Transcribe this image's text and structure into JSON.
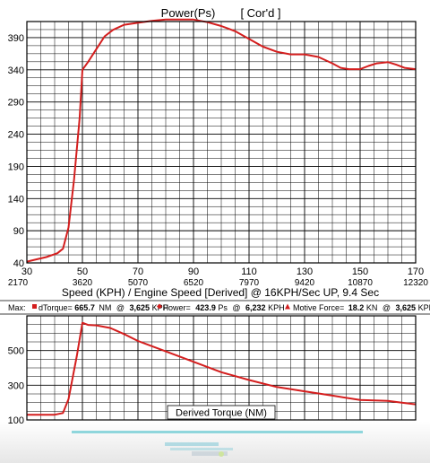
{
  "colors": {
    "curve": "#d41e1e",
    "grid": "#000000",
    "frame": "#000000",
    "background": "#ffffff",
    "footer_bar": "#8fd6dc"
  },
  "stats_bar": {
    "label": "Max:",
    "items": [
      {
        "marker": "square",
        "name": "dTorque=",
        "value": "665.7",
        "unit": "NM",
        "at": "@",
        "rpm": "3,625",
        "rpm_unit": "KPH"
      },
      {
        "marker": "diamond",
        "name": "Power=",
        "value": "423.9",
        "unit": "Ps",
        "at": "@",
        "rpm": "6,232",
        "rpm_unit": "KPH"
      },
      {
        "marker": "triangle",
        "name": "Motive Force=",
        "value": "18.2",
        "unit": "KN",
        "at": "@",
        "rpm": "3,625",
        "rpm_unit": "KPH"
      }
    ]
  },
  "chart_data": [
    {
      "type": "line",
      "title": "Power(Ps)",
      "subtitle": "[ Cor'd ]",
      "xlabel": "Speed (KPH) / Engine Speed [Derived] @ 16KPH/Sec UP, 9.4 Sec",
      "xlim": [
        30,
        170
      ],
      "ylim": [
        40,
        415
      ],
      "grid": true,
      "x_ticks": [
        30,
        50,
        70,
        90,
        110,
        130,
        150,
        170
      ],
      "x_tick_labels": [
        "30",
        "50",
        "70",
        "90",
        "110",
        "130",
        "150",
        "170"
      ],
      "x2_tick_labels": [
        "2170",
        "3620",
        "5070",
        "6520",
        "7970",
        "9420",
        "10870",
        "12320"
      ],
      "y_ticks": [
        40,
        90,
        140,
        190,
        240,
        290,
        340,
        390
      ],
      "y_tick_labels": [
        "40",
        "90",
        "140",
        "190",
        "240",
        "290",
        "340",
        "390"
      ],
      "series": [
        {
          "x": [
            30,
            33,
            37,
            41,
            43,
            45,
            47,
            49,
            50,
            52,
            55,
            58,
            61,
            65,
            70,
            75,
            80,
            85,
            90,
            95,
            100,
            105,
            110,
            115,
            120,
            125,
            130,
            135,
            140,
            143,
            146,
            150,
            153,
            156,
            160,
            163,
            166,
            170
          ],
          "y": [
            42,
            45,
            49,
            55,
            62,
            95,
            170,
            265,
            340,
            352,
            372,
            392,
            402,
            410,
            413,
            416,
            418,
            418,
            418,
            414,
            408,
            400,
            388,
            376,
            368,
            364,
            364,
            360,
            350,
            343,
            341,
            341,
            346,
            350,
            352,
            348,
            343,
            341
          ]
        }
      ]
    },
    {
      "type": "line",
      "title": "Derived Torque (NM)",
      "xlim": [
        30,
        170
      ],
      "ylim": [
        100,
        700
      ],
      "grid": true,
      "y_ticks": [
        100,
        300,
        500
      ],
      "y_tick_labels": [
        "100",
        "300",
        "500"
      ],
      "series": [
        {
          "x": [
            30,
            35,
            40,
            43,
            45,
            48,
            50,
            52,
            55,
            60,
            65,
            70,
            80,
            90,
            100,
            110,
            120,
            130,
            140,
            150,
            160,
            165,
            170
          ],
          "y": [
            130,
            130,
            130,
            140,
            220,
            470,
            660,
            648,
            645,
            630,
            595,
            555,
            495,
            435,
            375,
            330,
            290,
            265,
            240,
            215,
            210,
            200,
            190
          ]
        }
      ]
    }
  ]
}
